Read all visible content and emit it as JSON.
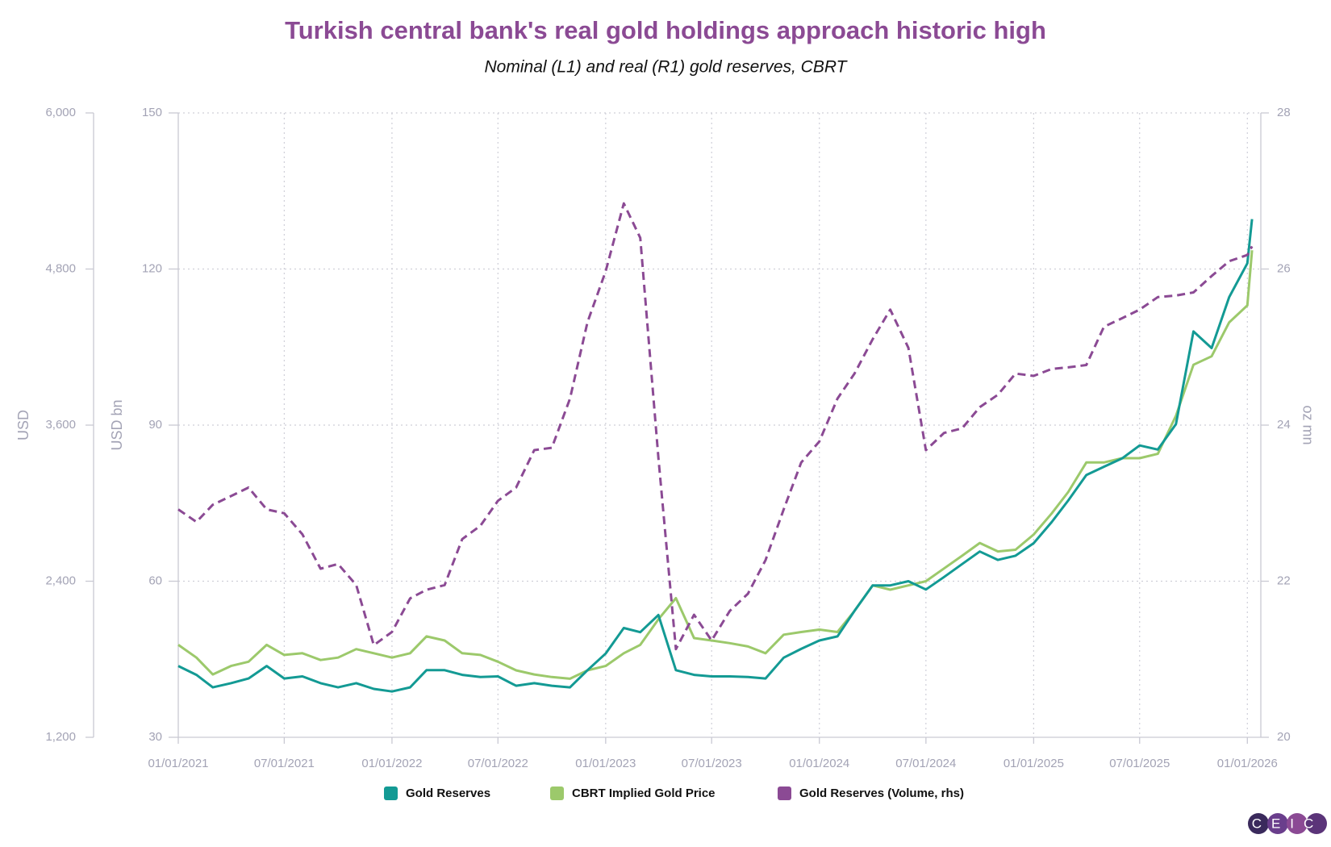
{
  "chart_data": {
    "type": "line",
    "title": "Turkish central bank's real gold holdings approach historic high",
    "subtitle": "Nominal (L1) and real (R1) gold reserves, CBRT",
    "logo": "CEIC",
    "x": [
      "01/01/2021",
      "02/01/2021",
      "03/01/2021",
      "04/01/2021",
      "05/01/2021",
      "06/01/2021",
      "07/01/2021",
      "08/01/2021",
      "09/01/2021",
      "10/01/2021",
      "11/01/2021",
      "12/01/2021",
      "01/01/2022",
      "02/01/2022",
      "03/01/2022",
      "04/01/2022",
      "05/01/2022",
      "06/01/2022",
      "07/01/2022",
      "08/01/2022",
      "09/01/2022",
      "10/01/2022",
      "11/01/2022",
      "12/01/2022",
      "01/01/2023",
      "02/01/2023",
      "03/01/2023",
      "04/01/2023",
      "05/01/2023",
      "06/01/2023",
      "07/01/2023",
      "08/01/2023",
      "09/01/2023",
      "10/01/2023",
      "11/01/2023",
      "12/01/2023",
      "01/01/2024",
      "02/01/2024",
      "03/01/2024",
      "04/01/2024",
      "05/01/2024",
      "06/01/2024",
      "07/01/2024",
      "08/01/2024",
      "09/01/2024",
      "10/01/2024",
      "11/01/2024",
      "12/01/2024",
      "01/01/2025",
      "02/01/2025",
      "03/01/2025",
      "04/01/2025",
      "05/01/2025",
      "06/01/2025",
      "07/01/2025",
      "08/01/2025",
      "09/01/2025",
      "10/01/2025",
      "11/01/2025",
      "12/01/2025",
      "01/01/2026",
      "01/09/2026"
    ],
    "xlim": [
      "01/01/2021",
      "01/24/2026"
    ],
    "xticks": [
      "01/01/2021",
      "07/01/2021",
      "01/01/2022",
      "07/01/2022",
      "01/01/2023",
      "07/01/2023",
      "01/01/2024",
      "07/01/2024",
      "01/01/2025",
      "07/01/2025",
      "01/01/2026"
    ],
    "ylabel": "USD bn",
    "ylim": [
      30,
      150
    ],
    "yticks": [
      30,
      60,
      90,
      120,
      150
    ],
    "y2label": "oz mn",
    "y2lim": [
      20,
      28
    ],
    "y2ticks": [
      20,
      22,
      24,
      26,
      28
    ],
    "y3label": "USD",
    "y3lim": [
      1200,
      6000
    ],
    "y3ticks": [
      {
        "value": 1200,
        "label": "1,200"
      },
      {
        "value": 2400,
        "label": "2,400"
      },
      {
        "value": 3600,
        "label": "3,600"
      },
      {
        "value": 4800,
        "label": "4,800"
      },
      {
        "value": 6000,
        "label": "6,000"
      }
    ],
    "grid": true,
    "series": [
      {
        "name": "Gold Reserves",
        "color": "#139a94",
        "axis": "y",
        "dashed": false,
        "values": [
          43.7,
          42,
          39.6,
          40.4,
          41.3,
          43.7,
          41.3,
          41.7,
          40.4,
          39.6,
          40.4,
          39.3,
          38.8,
          39.6,
          42.9,
          42.9,
          42,
          41.6,
          41.7,
          39.9,
          40.4,
          39.9,
          39.6,
          42.9,
          46.1,
          51,
          50.2,
          53.5,
          42.9,
          42,
          41.7,
          41.7,
          41.6,
          41.3,
          45.3,
          47,
          48.6,
          49.4,
          54.3,
          59.2,
          59.2,
          60,
          58.4,
          60.8,
          63.3,
          65.7,
          64.1,
          64.9,
          67.3,
          71.4,
          75.5,
          80.4,
          82,
          83.6,
          86.1,
          85.3,
          90.2,
          108,
          104.8,
          114.6,
          121.1,
          129.6
        ]
      },
      {
        "name": "CBRT Implied Gold Price",
        "color": "#9cc96b",
        "axis": "y3",
        "dashed": false,
        "values": [
          1911,
          1813,
          1683,
          1748,
          1781,
          1911,
          1833,
          1846,
          1794,
          1813,
          1878,
          1846,
          1813,
          1846,
          1976,
          1944,
          1846,
          1833,
          1781,
          1715,
          1683,
          1663,
          1650,
          1715,
          1748,
          1846,
          1911,
          2107,
          2270,
          1963,
          1944,
          1924,
          1898,
          1846,
          1989,
          2009,
          2028,
          2009,
          2172,
          2368,
          2335,
          2368,
          2400,
          2498,
          2596,
          2694,
          2629,
          2642,
          2759,
          2922,
          3085,
          3313,
          3313,
          3346,
          3346,
          3379,
          3672,
          4064,
          4129,
          4390,
          4520,
          4944
        ]
      },
      {
        "name": "Gold Reserves (Volume, rhs)",
        "color": "#8b4a94",
        "axis": "y2",
        "dashed": true,
        "values": [
          22.92,
          22.76,
          22.98,
          23.09,
          23.2,
          22.92,
          22.87,
          22.6,
          22.16,
          22.22,
          21.95,
          21.18,
          21.35,
          21.78,
          21.89,
          21.95,
          22.54,
          22.71,
          23.03,
          23.2,
          23.68,
          23.71,
          24.34,
          25.32,
          25.97,
          26.84,
          26.4,
          23.58,
          21.13,
          21.57,
          21.24,
          21.62,
          21.84,
          22.27,
          22.92,
          23.52,
          23.79,
          24.34,
          24.66,
          25.1,
          25.48,
          24.99,
          23.68,
          23.9,
          23.96,
          24.23,
          24.39,
          24.66,
          24.63,
          24.72,
          24.74,
          24.77,
          25.26,
          25.37,
          25.48,
          25.64,
          25.66,
          25.7,
          25.91,
          26.1,
          26.18,
          26.29
        ]
      }
    ]
  }
}
